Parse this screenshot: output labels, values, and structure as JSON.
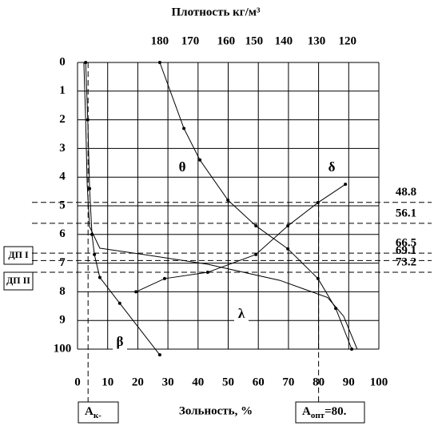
{
  "chart_data": {
    "type": "line",
    "title": "Плотность кг/м³",
    "x_label": "Зольность, %",
    "xlim": [
      0,
      100
    ],
    "ylim": [
      0,
      100
    ],
    "xticks": [
      0,
      10,
      20,
      30,
      40,
      50,
      60,
      70,
      80,
      90,
      100
    ],
    "yticks": [
      0,
      {
        "value": 10,
        "label": "1"
      },
      {
        "value": 20,
        "label": "2"
      },
      {
        "value": 30,
        "label": "3"
      },
      {
        "value": 40,
        "label": "4"
      },
      {
        "value": 50,
        "label": "5"
      },
      {
        "value": 60,
        "label": "6"
      },
      {
        "value": 70,
        "label": "7"
      },
      {
        "value": 80,
        "label": "8"
      },
      {
        "value": 90,
        "label": "9"
      },
      100
    ],
    "x2ticks": [
      {
        "value": 180,
        "x": 27.3
      },
      {
        "value": 170,
        "x": 37.4
      },
      {
        "value": 160,
        "x": 49.3
      },
      {
        "value": 150,
        "x": 58.6
      },
      {
        "value": 140,
        "x": 68.4
      },
      {
        "value": 130,
        "x": 79.3
      },
      {
        "value": 120,
        "x": 89.6
      }
    ],
    "grid": true,
    "series": [
      {
        "name": "λ",
        "color": "#000000",
        "marker": false,
        "x": [
          2.1,
          2.7,
          3.2,
          4.0,
          7.4,
          22,
          43.2,
          67.1,
          83,
          88.3,
          92.8
        ],
        "values": [
          0,
          20,
          42.5,
          57.3,
          64.8,
          67,
          70.4,
          76,
          82,
          88.5,
          100
        ]
      },
      {
        "name": "β",
        "color": "#000000",
        "marker": true,
        "x": [
          2.7,
          3.4,
          4.0,
          4.8,
          5.6,
          7.4,
          14,
          27.3
        ],
        "values": [
          0,
          20,
          44,
          60,
          67,
          75,
          84,
          102
        ]
      },
      {
        "name": "θ",
        "color": "#000000",
        "marker": true,
        "x": [
          27.3,
          35.3,
          40.6,
          49.9,
          59.2,
          69.8,
          79.8,
          85.7,
          91
        ],
        "values": [
          0,
          23,
          34,
          48,
          57,
          65,
          75.4,
          85.8,
          100
        ]
      },
      {
        "name": "δ",
        "color": "#000000",
        "marker": true,
        "x": [
          19.4,
          28.9,
          43.2,
          59.2,
          69.8,
          79.8,
          88.9
        ],
        "values": [
          80,
          75.4,
          73.2,
          67,
          57,
          48.9,
          42.5
        ]
      }
    ],
    "levels": [
      48.8,
      56.1,
      66.5,
      69.1,
      73.2
    ],
    "reference_lines": [
      3.5,
      80
    ],
    "annotations": {
      "dp1": "ДП I",
      "dp2": "ДП II"
    },
    "ak_label": {
      "main": "A",
      "sub": "к-"
    },
    "aopt_label": {
      "main": "A",
      "sub": "опт",
      "rest": "=80."
    }
  }
}
